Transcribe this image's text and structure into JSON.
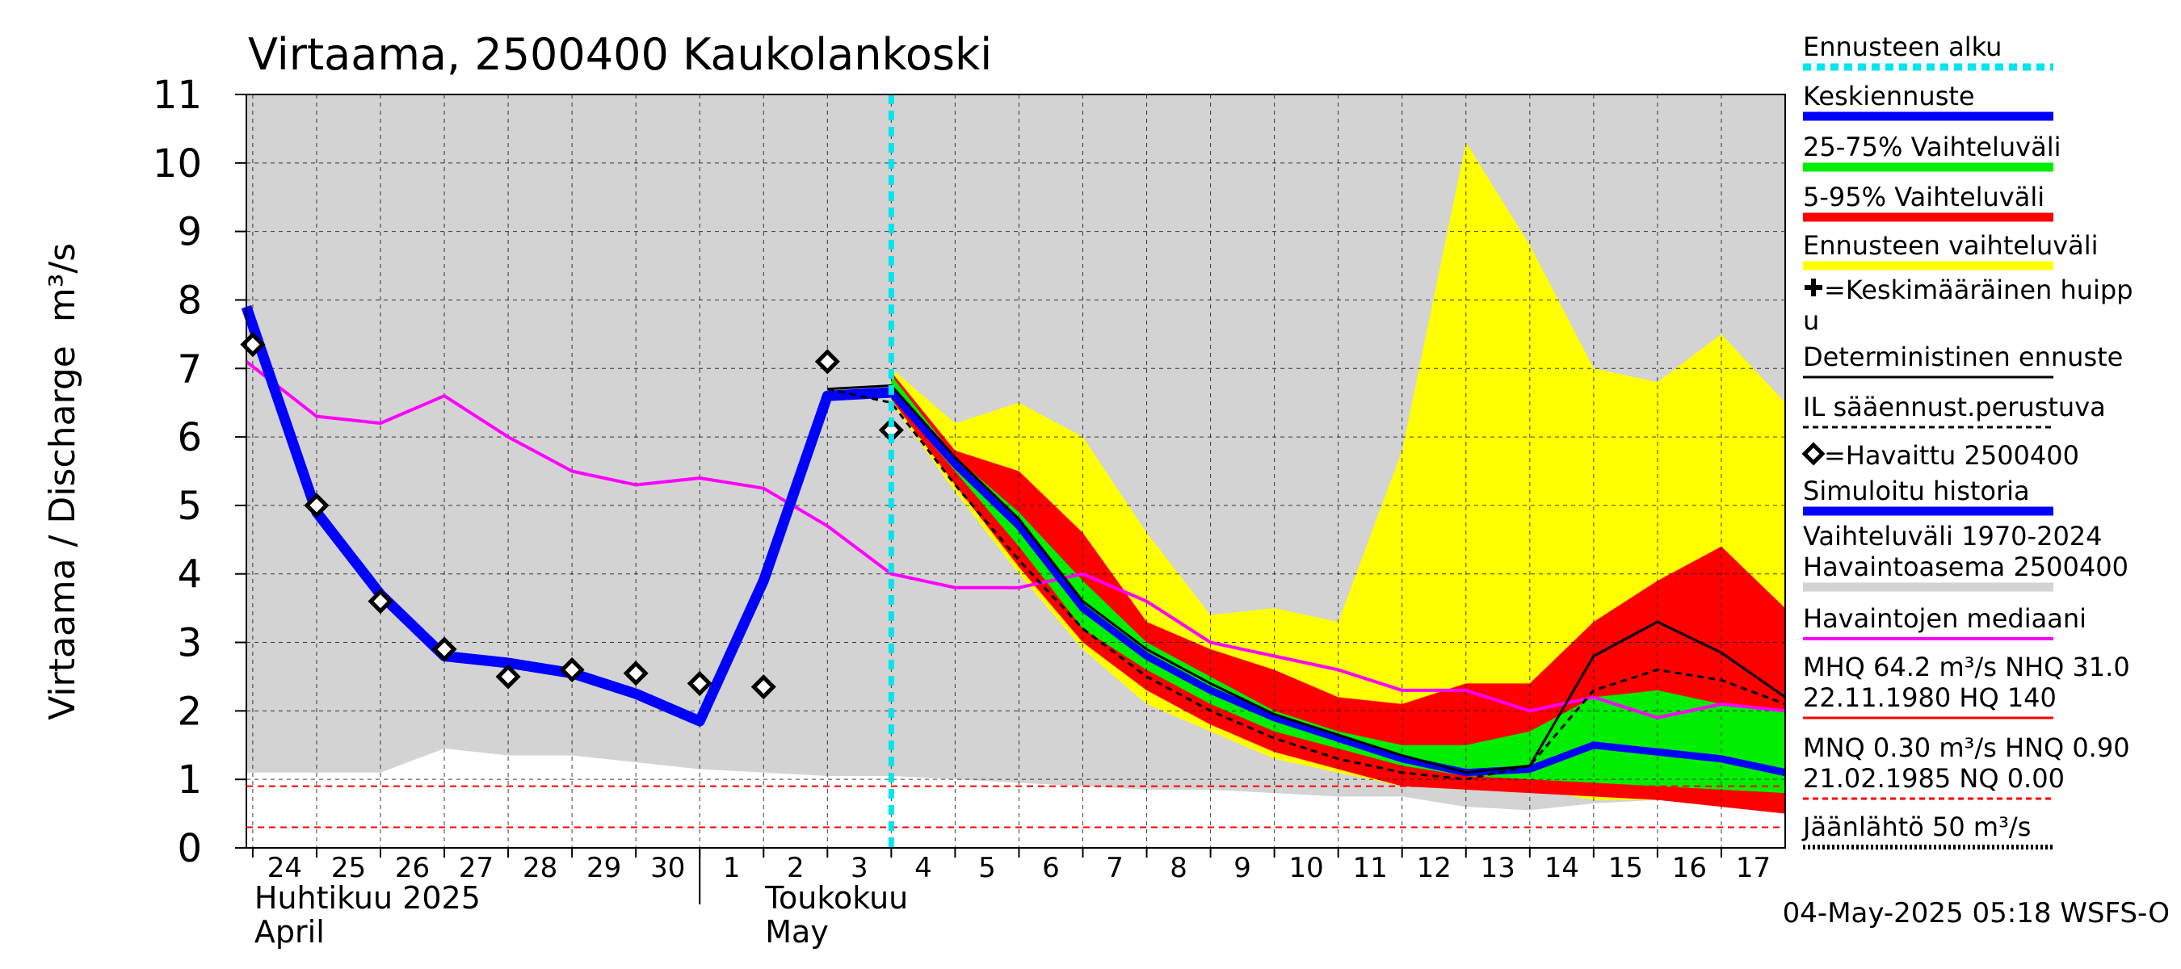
{
  "chart_data": {
    "type": "area",
    "title": "Virtaama, 2500400 Kaukolankoski",
    "ylabel": "Virtaama / Discharge",
    "yunit": "m³/s",
    "ylim": [
      0,
      11
    ],
    "yticks": [
      0,
      1,
      2,
      3,
      4,
      5,
      6,
      7,
      8,
      9,
      10,
      11
    ],
    "xlim": [
      -0.1,
      24
    ],
    "grid": true,
    "day_labels": [
      "24",
      "25",
      "26",
      "27",
      "28",
      "29",
      "30",
      "1",
      "2",
      "3",
      "4",
      "5",
      "6",
      "7",
      "8",
      "9",
      "10",
      "11",
      "12",
      "13",
      "14",
      "15",
      "16",
      "17"
    ],
    "month_labels": [
      {
        "day": 0,
        "text": "Huhtikuu  2025"
      },
      {
        "day": 0,
        "text": "April"
      },
      {
        "day": 8,
        "text": "Toukokuu"
      },
      {
        "day": 8,
        "text": "May"
      }
    ],
    "month_divider_day": 7,
    "forecast_start_day": 10,
    "footer": "04-May-2025 05:18 WSFS-O",
    "reference_lines": [
      0.9,
      0.3
    ],
    "history_range": {
      "x": [
        -0.1,
        1,
        2,
        3,
        4,
        5,
        6,
        7,
        8,
        9,
        10,
        11,
        12,
        13,
        14,
        15,
        16,
        17,
        18,
        19,
        20,
        21,
        22,
        23,
        24
      ],
      "low": [
        1.1,
        1.1,
        1.1,
        1.45,
        1.35,
        1.35,
        1.25,
        1.15,
        1.1,
        1.05,
        1.05,
        1.0,
        0.95,
        0.9,
        0.85,
        0.85,
        0.8,
        0.75,
        0.75,
        0.6,
        0.55,
        0.65,
        0.7,
        0.75,
        0.75
      ],
      "high": [
        11,
        11,
        11,
        11,
        11,
        11,
        11,
        11,
        11,
        11,
        11,
        11,
        11,
        11,
        11,
        11,
        11,
        11,
        11,
        11,
        11,
        11,
        11,
        11,
        11
      ]
    },
    "bands": {
      "x": [
        10,
        11,
        12,
        13,
        14,
        15,
        16,
        17,
        18,
        19,
        20,
        21,
        22,
        23,
        24
      ],
      "forecast_range": {
        "low": [
          6.5,
          5.2,
          4.0,
          2.9,
          2.1,
          1.7,
          1.3,
          1.1,
          0.9,
          0.85,
          0.85,
          0.7,
          0.7,
          0.65,
          0.6
        ],
        "high": [
          7.0,
          6.2,
          6.5,
          6.0,
          4.6,
          3.4,
          3.5,
          3.3,
          5.8,
          10.3,
          8.8,
          7.0,
          6.8,
          7.5,
          6.5
        ]
      },
      "p5_95": {
        "low": [
          6.55,
          5.3,
          4.1,
          3.0,
          2.3,
          1.8,
          1.4,
          1.15,
          0.9,
          0.85,
          0.8,
          0.75,
          0.7,
          0.6,
          0.5
        ],
        "high": [
          6.95,
          5.8,
          5.5,
          4.6,
          3.3,
          2.9,
          2.6,
          2.2,
          2.1,
          2.4,
          2.4,
          3.3,
          3.9,
          4.4,
          3.5
        ]
      },
      "p25_75": {
        "low": [
          6.6,
          5.5,
          4.4,
          3.2,
          2.6,
          2.1,
          1.7,
          1.45,
          1.2,
          1.05,
          1.0,
          0.95,
          0.9,
          0.85,
          0.8
        ],
        "high": [
          6.9,
          5.7,
          4.9,
          3.9,
          3.0,
          2.5,
          2.0,
          1.7,
          1.5,
          1.5,
          1.7,
          2.2,
          2.3,
          2.1,
          2.0
        ]
      }
    },
    "series": [
      {
        "name": "Havaintojen mediaani",
        "color": "#ff00ff",
        "x": [
          -0.1,
          1,
          2,
          3,
          4,
          5,
          6,
          7,
          8,
          9,
          10,
          11,
          12,
          13,
          14,
          15,
          16,
          17,
          18,
          19,
          20,
          21,
          22,
          23,
          24
        ],
        "y": [
          7.1,
          6.3,
          6.2,
          6.6,
          6.0,
          5.5,
          5.3,
          5.4,
          5.25,
          4.7,
          4.0,
          3.8,
          3.8,
          4.0,
          3.6,
          3.0,
          2.8,
          2.6,
          2.3,
          2.3,
          2.0,
          2.2,
          1.9,
          2.1,
          2.0
        ]
      },
      {
        "name": "Simuloitu historia",
        "color": "#0000ff",
        "x": [
          -0.1,
          1,
          2,
          3,
          4,
          5,
          6,
          7,
          8,
          9,
          10
        ],
        "y": [
          7.9,
          4.9,
          3.7,
          2.8,
          2.7,
          2.55,
          2.25,
          1.85,
          3.9,
          6.6,
          6.65
        ]
      },
      {
        "name": "Keskiennuste",
        "color": "#0000ff",
        "x": [
          10,
          11,
          12,
          13,
          14,
          15,
          16,
          17,
          18,
          19,
          20,
          21,
          22,
          23,
          24
        ],
        "y": [
          6.65,
          5.6,
          4.7,
          3.5,
          2.8,
          2.3,
          1.9,
          1.6,
          1.3,
          1.1,
          1.15,
          1.5,
          1.4,
          1.3,
          1.1
        ]
      },
      {
        "name": "Deterministinen ennuste",
        "color": "#000000",
        "x": [
          9,
          10,
          11,
          12,
          13,
          14,
          15,
          16,
          17,
          18,
          19,
          20,
          21,
          22,
          23,
          24
        ],
        "y": [
          6.7,
          6.75,
          5.7,
          4.8,
          3.6,
          2.9,
          2.4,
          1.95,
          1.65,
          1.35,
          1.1,
          1.2,
          2.8,
          3.3,
          2.85,
          2.2
        ]
      },
      {
        "name": "IL sääennust.perustuva",
        "color": "#000000",
        "x": [
          9,
          10,
          11,
          12,
          13,
          14,
          15,
          16,
          17,
          18,
          19,
          20,
          21,
          22,
          23,
          24
        ],
        "y": [
          6.7,
          6.5,
          5.3,
          4.2,
          3.2,
          2.5,
          2.0,
          1.6,
          1.3,
          1.1,
          1.0,
          1.2,
          2.3,
          2.6,
          2.45,
          2.1
        ]
      }
    ],
    "observed": {
      "name": "Havaittu 2500400",
      "x": [
        0,
        1,
        2,
        3,
        4,
        5,
        6,
        7,
        8,
        9,
        10
      ],
      "y": [
        7.35,
        5.0,
        3.6,
        2.9,
        2.5,
        2.6,
        2.55,
        2.4,
        2.35,
        7.1,
        6.1
      ]
    },
    "legend_position": "right",
    "legend": [
      {
        "text": "Ennusteen alku",
        "color": "#00e5ee",
        "style": "dotted"
      },
      {
        "text": "Keskiennuste",
        "color": "#0000ff",
        "style": "thick"
      },
      {
        "text": "25-75% Vaihteluväli",
        "color": "#00ee00",
        "style": "thick"
      },
      {
        "text": "5-95% Vaihteluväli",
        "color": "#ff0000",
        "style": "thick"
      },
      {
        "text": "Ennusteen vaihteluväli",
        "color": "#ffff00",
        "style": "thick"
      },
      {
        "text": "=Keskimääräinen huipp",
        "text2": "u",
        "symbol": "cross"
      },
      {
        "text": "Deterministinen ennuste",
        "color": "#000000",
        "style": "thin"
      },
      {
        "text": "IL sääennust.perustuva",
        "color": "#000000",
        "style": "dashed"
      },
      {
        "text": "=Havaittu 2500400",
        "symbol": "diamond"
      },
      {
        "text": "Simuloitu historia",
        "color": "#0000ff",
        "style": "thick"
      },
      {
        "text": "Vaihteluväli 1970-2024",
        "text2": " Havaintoasema 2500400",
        "color": "#d3d3d3",
        "style": "thick"
      },
      {
        "text": "Havaintojen mediaani",
        "color": "#ff00ff",
        "style": "medium"
      },
      {
        "text": "MHQ 64.2 m³/s NHQ 31.0",
        "text2": "22.11.1980 HQ  140",
        "color": "#ff0000",
        "style": "thin"
      },
      {
        "text": "MNQ 0.30 m³/s HNQ 0.90",
        "text2": "21.02.1985 NQ 0.00",
        "color": "#ff0000",
        "style": "dashed"
      },
      {
        "text": "Jäänlähtö 50 m³/s",
        "color": "#000000",
        "style": "dotted-thick"
      }
    ]
  }
}
